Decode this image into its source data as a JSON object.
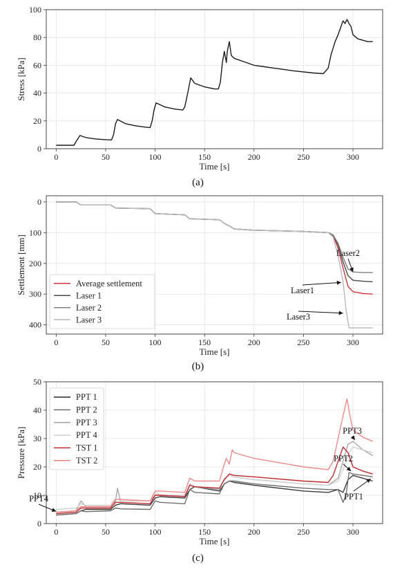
{
  "chart_data": [
    {
      "panel": "(a)",
      "type": "line",
      "xlabel": "Time [s]",
      "ylabel": "Stress [kPa]",
      "xlim": [
        -10,
        330
      ],
      "ylim": [
        0,
        100
      ],
      "xticks": [
        0,
        50,
        100,
        150,
        200,
        250,
        300
      ],
      "yticks": [
        0,
        20,
        40,
        60,
        80,
        100
      ],
      "grid": true,
      "series": [
        {
          "color": "#1a1a1a",
          "x": [
            0,
            18,
            20,
            24,
            30,
            40,
            50,
            56,
            58,
            60,
            62,
            70,
            80,
            90,
            95,
            97,
            99,
            101,
            110,
            120,
            128,
            130,
            133,
            136,
            140,
            150,
            160,
            164,
            166,
            168,
            170,
            172,
            173,
            175,
            177,
            180,
            190,
            200,
            220,
            240,
            260,
            270,
            275,
            278,
            282,
            285,
            288,
            290,
            292,
            294,
            296,
            298,
            300,
            305,
            310,
            315,
            320
          ],
          "y": [
            2.5,
            2.5,
            5,
            9.5,
            8,
            7,
            6.5,
            6.3,
            10,
            18,
            21,
            18,
            16.5,
            15.5,
            15.2,
            20,
            28,
            33,
            30,
            28.5,
            27.8,
            30,
            40,
            51,
            47,
            44.5,
            43,
            43,
            48,
            62,
            70,
            62,
            70,
            77,
            67,
            65,
            62.5,
            60,
            58,
            56,
            54.5,
            54,
            58,
            68,
            77,
            82,
            88,
            92,
            90,
            93,
            90,
            88,
            82,
            79,
            78,
            77,
            77
          ]
        }
      ]
    },
    {
      "panel": "(b)",
      "type": "line",
      "xlabel": "Time [s]",
      "ylabel": "Settlement [mm]",
      "xlim": [
        -10,
        330
      ],
      "ylim": [
        430,
        -20
      ],
      "inverted_y": true,
      "xticks": [
        0,
        50,
        100,
        150,
        200,
        250,
        300
      ],
      "yticks": [
        0,
        100,
        200,
        300,
        400
      ],
      "grid": true,
      "legend": "lower-left",
      "series": [
        {
          "name": "Average settlement",
          "color": "#d0343a",
          "x": [
            0,
            20,
            25,
            55,
            60,
            95,
            100,
            130,
            135,
            165,
            170,
            175,
            180,
            200,
            250,
            275,
            280,
            285,
            290,
            295,
            300,
            310,
            320
          ],
          "y": [
            0,
            0,
            10,
            10,
            20,
            22,
            38,
            42,
            55,
            58,
            70,
            78,
            88,
            92,
            96,
            100,
            110,
            150,
            215,
            275,
            292,
            298,
            300
          ]
        },
        {
          "name": "Laser 1",
          "color": "#4a4a4a",
          "x": [
            0,
            20,
            25,
            55,
            60,
            95,
            100,
            130,
            135,
            165,
            170,
            175,
            180,
            200,
            250,
            275,
            280,
            285,
            290,
            295,
            300,
            310,
            320
          ],
          "y": [
            0,
            0,
            10,
            10,
            20,
            22,
            38,
            42,
            55,
            58,
            70,
            78,
            88,
            92,
            96,
            100,
            108,
            140,
            195,
            240,
            255,
            258,
            260
          ]
        },
        {
          "name": "Laser 2",
          "color": "#7f7f7f",
          "x": [
            0,
            20,
            25,
            55,
            60,
            95,
            100,
            130,
            135,
            165,
            170,
            175,
            180,
            200,
            250,
            275,
            280,
            285,
            290,
            295,
            300,
            310,
            320
          ],
          "y": [
            0,
            0,
            10,
            10,
            20,
            22,
            38,
            42,
            55,
            58,
            70,
            78,
            88,
            92,
            96,
            100,
            108,
            135,
            180,
            218,
            228,
            230,
            230
          ]
        },
        {
          "name": "Laser 3",
          "color": "#b8b8b8",
          "x": [
            0,
            20,
            25,
            55,
            60,
            95,
            100,
            130,
            135,
            165,
            170,
            175,
            180,
            200,
            250,
            275,
            280,
            285,
            290,
            293,
            296,
            300,
            310,
            320
          ],
          "y": [
            0,
            0,
            10,
            10,
            20,
            22,
            38,
            42,
            55,
            58,
            70,
            78,
            88,
            92,
            96,
            100,
            115,
            175,
            260,
            350,
            410,
            410,
            410,
            410
          ]
        }
      ],
      "annotations": [
        {
          "text": "Laser2",
          "target": [
            300,
            228
          ]
        },
        {
          "text": "Laser1",
          "target": [
            288,
            262
          ]
        },
        {
          "text": "Laser3",
          "target": [
            290,
            362
          ]
        }
      ]
    },
    {
      "panel": "(c)",
      "type": "line",
      "xlabel": "Time [s]",
      "ylabel": "Pressure [kPa]",
      "xlim": [
        -10,
        330
      ],
      "ylim": [
        0,
        50
      ],
      "xticks": [
        0,
        50,
        100,
        150,
        200,
        250,
        300
      ],
      "yticks": [
        0,
        10,
        20,
        30,
        40,
        50
      ],
      "grid": true,
      "legend": "upper-left",
      "series": [
        {
          "name": "PPT 1",
          "color": "#3a3a3a",
          "x": [
            0,
            20,
            25,
            30,
            55,
            60,
            65,
            95,
            100,
            105,
            130,
            135,
            140,
            165,
            170,
            175,
            180,
            200,
            250,
            275,
            285,
            290,
            295,
            300,
            310,
            320
          ],
          "y": [
            3,
            3.5,
            4.5,
            5,
            5,
            6.5,
            7,
            6.5,
            9,
            9.5,
            9,
            12,
            13,
            11.5,
            14,
            15,
            14.5,
            13.5,
            11.5,
            11,
            12,
            11,
            15.5,
            17,
            16,
            15
          ]
        },
        {
          "name": "PPT 2",
          "color": "#6e6e6e",
          "x": [
            0,
            20,
            25,
            30,
            55,
            60,
            65,
            95,
            100,
            105,
            130,
            135,
            140,
            165,
            170,
            175,
            180,
            200,
            250,
            275,
            285,
            290,
            293,
            296,
            300,
            310,
            320
          ],
          "y": [
            3,
            3.5,
            4.5,
            4.2,
            4.5,
            5.5,
            5.2,
            5,
            8,
            7.5,
            7,
            12,
            11,
            10.5,
            14,
            15,
            15,
            14,
            12.5,
            12,
            12,
            7.5,
            10,
            18,
            17.5,
            17,
            16.5
          ]
        },
        {
          "name": "PPT 3",
          "color": "#a8a8a8",
          "x": [
            0,
            20,
            25,
            30,
            55,
            60,
            62,
            65,
            95,
            100,
            105,
            130,
            133,
            135,
            140,
            165,
            170,
            175,
            180,
            200,
            250,
            275,
            285,
            290,
            295,
            300,
            310,
            320
          ],
          "y": [
            4,
            4.5,
            8,
            6,
            6,
            8,
            12.5,
            8,
            8,
            10,
            10,
            9.5,
            12,
            14,
            13,
            12,
            16,
            17,
            16.5,
            15.5,
            14,
            13.5,
            16,
            22,
            28,
            29,
            26,
            24
          ]
        },
        {
          "name": "PPT 4",
          "color": "#d2d2d2",
          "x": [
            0,
            20,
            25,
            30,
            55,
            60,
            65,
            95,
            100,
            105,
            130,
            135,
            140,
            165,
            170,
            175,
            180,
            200,
            250,
            275,
            285,
            290,
            295,
            300,
            310,
            320
          ],
          "y": [
            5,
            5.5,
            7,
            6.5,
            6.5,
            9,
            8,
            8,
            11,
            10,
            10,
            14,
            13,
            12.5,
            16,
            17,
            16.5,
            15.5,
            14,
            13.5,
            15,
            19,
            24,
            27,
            26,
            25
          ]
        },
        {
          "name": "TST 1",
          "color": "#c0282e",
          "x": [
            0,
            20,
            25,
            30,
            55,
            60,
            65,
            95,
            100,
            105,
            130,
            135,
            140,
            165,
            170,
            175,
            180,
            200,
            250,
            275,
            280,
            285,
            290,
            295,
            300,
            310,
            320
          ],
          "y": [
            3.5,
            4,
            5.5,
            5.5,
            5.5,
            7.5,
            7.5,
            7,
            10,
            10,
            9.5,
            13.5,
            13,
            12.5,
            15.5,
            17.5,
            17,
            16.5,
            15,
            14.5,
            17,
            22,
            27,
            25,
            20,
            18.5,
            17.5
          ]
        },
        {
          "name": "TST 2",
          "color": "#ec8a8a",
          "x": [
            0,
            20,
            25,
            30,
            55,
            60,
            65,
            95,
            100,
            105,
            130,
            135,
            140,
            165,
            170,
            172,
            175,
            178,
            180,
            200,
            250,
            275,
            280,
            285,
            290,
            294,
            297,
            300,
            310,
            320
          ],
          "y": [
            4,
            4.5,
            6,
            6,
            6,
            8.5,
            8.5,
            8,
            11.5,
            11.5,
            11,
            16,
            15,
            15,
            21,
            23,
            21,
            26,
            25,
            23,
            20,
            19,
            22,
            30,
            38,
            44,
            38,
            33,
            30.5,
            29
          ]
        }
      ],
      "annotations": [
        {
          "text": "PPT3",
          "target": [
            302,
            29.5
          ]
        },
        {
          "text": "PPT2",
          "target": [
            298,
            18.5
          ]
        },
        {
          "text": "PPT1",
          "target": [
            318,
            15.8
          ]
        },
        {
          "text": "PPT4",
          "target": [
            0,
            4.3
          ]
        }
      ]
    }
  ]
}
